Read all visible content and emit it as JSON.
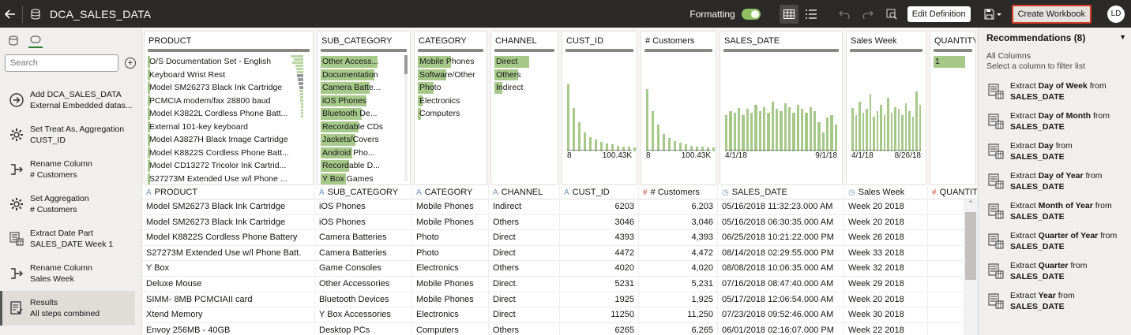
{
  "topbar": {
    "title": "DCA_SALES_DATA",
    "formatting_label": "Formatting",
    "edit_definition": "Edit Definition",
    "create_workbook": "Create Workbook",
    "avatar_initials": "LD"
  },
  "sidebar": {
    "search_placeholder": "Search",
    "steps": [
      {
        "line1": "Add DCA_SALES_DATA",
        "line2": "External Embedded datas...",
        "icon": "arrow-right-circle-icon"
      },
      {
        "line1": "Set Treat As, Aggregation",
        "line2": "CUST_ID",
        "icon": "gear-icon"
      },
      {
        "line1": "Rename Column",
        "line2": "# Customers",
        "icon": "rename-column-icon"
      },
      {
        "line1": "Set Aggregation",
        "line2": "# Customers",
        "icon": "gear-icon"
      },
      {
        "line1": "Extract Date Part",
        "line2": "SALES_DATE Week 1",
        "icon": "extract-date-icon"
      },
      {
        "line1": "Rename Column",
        "line2": "Sales Week",
        "icon": "rename-column-icon"
      },
      {
        "line1": "Results",
        "line2": "All steps combined",
        "icon": "results-icon"
      }
    ]
  },
  "cards": {
    "product": {
      "title": "PRODUCT",
      "items": [
        "O/S Documentation Set - English",
        "Keyboard Wrist Rest",
        "Model SM26273 Black Ink Cartridge",
        "PCMCIA modem/fax 28800 baud",
        "Model K3822L Cordless Phone Batt...",
        "External 101-key keyboard",
        "Model A3827H Black Image Cartridge",
        "Model K8822S Cordless Phone Batt...",
        "Model CD13272 Tricolor Ink Cartrid...",
        "S27273M Extended Use w/l Phone ..."
      ]
    },
    "sub_category": {
      "title": "SUB_CATEGORY",
      "items": [
        "Other Access...",
        "Documentation",
        "Camera Batte...",
        "iOS Phones",
        "Bluetooth De...",
        "Recordable CDs",
        "Jackets/Covers",
        "Android Pho...",
        "Recordable D...",
        "Y Box Games"
      ]
    },
    "category": {
      "title": "CATEGORY",
      "items": [
        "Mobile Phones",
        "Software/Other",
        "Photo",
        "Electronics",
        "Computers"
      ]
    },
    "channel": {
      "title": "CHANNEL",
      "items": [
        "Direct",
        "Others",
        "Indirect"
      ]
    },
    "cust_id": {
      "title": "CUST_ID",
      "min": "8",
      "max": "100.43K"
    },
    "customers": {
      "title": "# Customers",
      "min": "8",
      "max": "100.43K"
    },
    "sales_date": {
      "title": "SALES_DATE",
      "min": "4/1/18",
      "max": "9/1/18"
    },
    "sales_week": {
      "title": "Sales Week",
      "min": "4/1/18",
      "max": "8/26/18"
    },
    "quantity": {
      "title": "QUANTITY",
      "value": "1"
    }
  },
  "columns": [
    "PRODUCT",
    "SUB_CATEGORY",
    "CATEGORY",
    "CHANNEL",
    "CUST_ID",
    "# Customers",
    "SALES_DATE",
    "Sales Week",
    "QUANTITY"
  ],
  "rows": [
    [
      "Model SM26273 Black Ink Cartridge",
      "iOS Phones",
      "Mobile Phones",
      "Indirect",
      "6203",
      "6,203",
      "05/16/2018 11:32:23.000 AM",
      "Week 20 2018"
    ],
    [
      "Model SM26273 Black Ink Cartridge",
      "iOS Phones",
      "Mobile Phones",
      "Others",
      "3046",
      "3,046",
      "05/16/2018 06:30:35.000 AM",
      "Week 20 2018"
    ],
    [
      "Model K8822S Cordless Phone Battery",
      "Camera Batteries",
      "Photo",
      "Direct",
      "4393",
      "4,393",
      "06/25/2018 10:21:22.000 PM",
      "Week 26 2018"
    ],
    [
      "S27273M Extended Use w/l Phone Batt.",
      "Camera Batteries",
      "Photo",
      "Direct",
      "4472",
      "4,472",
      "08/14/2018 02:29:55.000 PM",
      "Week 33 2018"
    ],
    [
      "Y Box",
      "Game Consoles",
      "Electronics",
      "Others",
      "4020",
      "4,020",
      "08/08/2018 10:06:35.000 AM",
      "Week 32 2018"
    ],
    [
      "Deluxe Mouse",
      "Other Accessories",
      "Mobile Phones",
      "Direct",
      "5231",
      "5,231",
      "07/16/2018 08:47:40.000 AM",
      "Week 29 2018"
    ],
    [
      "SIMM- 8MB PCMCIAII card",
      "Bluetooth Devices",
      "Mobile Phones",
      "Direct",
      "1925",
      "1,925",
      "05/17/2018 12:06:54.000 AM",
      "Week 20 2018"
    ],
    [
      "Xtend Memory",
      "Y Box Accessories",
      "Electronics",
      "Direct",
      "11250",
      "11,250",
      "07/23/2018 09:52:46.000 AM",
      "Week 30 2018"
    ],
    [
      "Envoy 256MB - 40GB",
      "Desktop PCs",
      "Computers",
      "Others",
      "6265",
      "6,265",
      "06/01/2018 02:16:07.000 PM",
      "Week 22 2018"
    ]
  ],
  "recommendations": {
    "title": "Recommendations (8)",
    "sub1": "All Columns",
    "sub2": "Select a column to filter list",
    "items": [
      {
        "pre": "Extract ",
        "bold": "Day of Week",
        "mid": " from ",
        "col": "SALES_DATE"
      },
      {
        "pre": "Extract ",
        "bold": "Day of Month",
        "mid": " from ",
        "col": "SALES_DATE"
      },
      {
        "pre": "Extract ",
        "bold": "Day",
        "mid": " from ",
        "col": "SALES_DATE"
      },
      {
        "pre": "Extract ",
        "bold": "Day of Year",
        "mid": " from ",
        "col": "SALES_DATE"
      },
      {
        "pre": "Extract ",
        "bold": "Month of Year",
        "mid": " from ",
        "col": "SALES_DATE"
      },
      {
        "pre": "Extract ",
        "bold": "Quarter of Year",
        "mid": " from ",
        "col": "SALES_DATE"
      },
      {
        "pre": "Extract ",
        "bold": "Quarter",
        "mid": " from ",
        "col": "SALES_DATE"
      },
      {
        "pre": "Extract ",
        "bold": "Year",
        "mid": " from ",
        "col": "SALES_DATE"
      }
    ]
  }
}
